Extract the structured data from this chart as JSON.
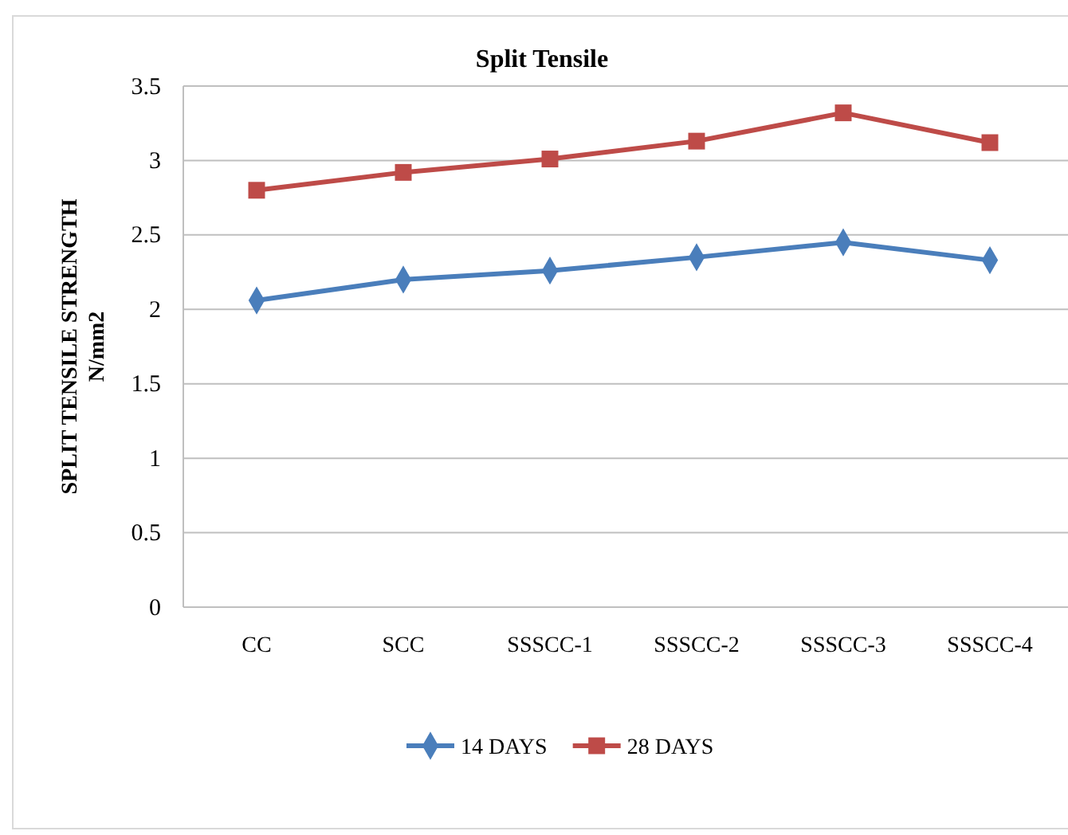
{
  "chart_data": {
    "type": "line",
    "title": "Split Tensile",
    "ylabel": "SPLIT TENSILE STRENGTH\nN/mm2",
    "categories": [
      "CC",
      "SCC",
      "SSSCC-1",
      "SSSCC-2",
      "SSSCC-3",
      "SSSCC-4"
    ],
    "series": [
      {
        "name": "14 DAYS",
        "color": "#4a7ebb",
        "marker": "diamond",
        "values": [
          2.06,
          2.2,
          2.26,
          2.35,
          2.45,
          2.33
        ]
      },
      {
        "name": "28 DAYS",
        "color": "#be4b48",
        "marker": "square",
        "values": [
          2.8,
          2.92,
          3.01,
          3.13,
          3.32,
          3.12
        ]
      }
    ],
    "ylim": [
      0,
      3.5
    ],
    "yticks": [
      0,
      0.5,
      1,
      1.5,
      2,
      2.5,
      3,
      3.5
    ],
    "grid": "y",
    "legend": "bottom"
  }
}
